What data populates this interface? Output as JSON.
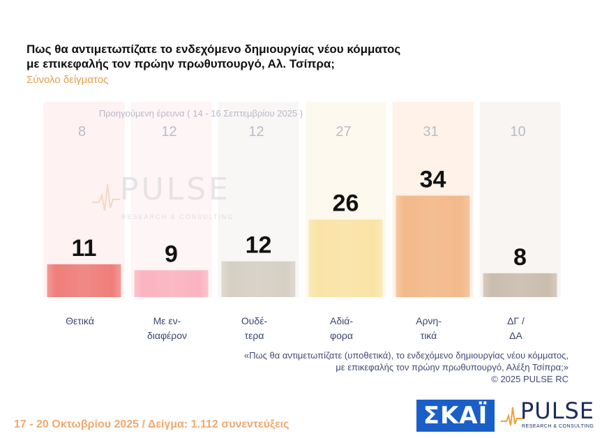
{
  "title_line1": "Πως θα αντιμετωπίζατε το ενδεχόμενο δημιουργίας νέου κόμματος",
  "title_line2": "με επικεφαλής τον πρώην πρωθυπουργό, Αλ. Τσίπρα;",
  "subtitle": "Σύνολο δείγματος",
  "previous_survey_label": "Προηγούμενη έρευνα ( 14 - 16 Σεπτεμβρίου 2025 )",
  "watermark": {
    "word": "PULSE",
    "sub": "RESEARCH & CONSULTING"
  },
  "note": {
    "line1": "«Πως θα αντιμετωπίζατε (υποθετικά), το ενδεχόμενο δημιουργίας νέου κόμματος,",
    "line2": "με επικεφαλής τον πρώην πρωθυπουργό, Αλέξη Τσίπρα;»",
    "line3": "©  2025  PULSE RC"
  },
  "footer": "17 - 20 Οκτωβρίου 2025  /  Δείγμα:  1.112 συνεντεύξεις",
  "logos": {
    "skai": "ΣΚΑΪ",
    "pulse": "PULSE",
    "pulse_sub": "RESEARCH & CONSULTING"
  },
  "chart_data": {
    "type": "bar",
    "categories": [
      [
        "Θετικά"
      ],
      [
        "Με εν-",
        "διαφέρον"
      ],
      [
        "Ουδέ-",
        "τερα"
      ],
      [
        "Αδιά-",
        "φορα"
      ],
      [
        "Αρνη-",
        "τικά"
      ],
      [
        "ΔΓ /",
        "ΔΑ"
      ]
    ],
    "series": [
      {
        "values": [
          11,
          9,
          12,
          26,
          34,
          8
        ]
      }
    ],
    "previous_values": [
      8,
      12,
      12,
      27,
      31,
      10
    ],
    "colors": [
      "#ef7e7a",
      "#fbb3c0",
      "#d6cfc4",
      "#fae3a6",
      "#f3b98a",
      "#cbbdae"
    ],
    "ylim": [
      0,
      34
    ],
    "grid": false,
    "legend": "none"
  }
}
